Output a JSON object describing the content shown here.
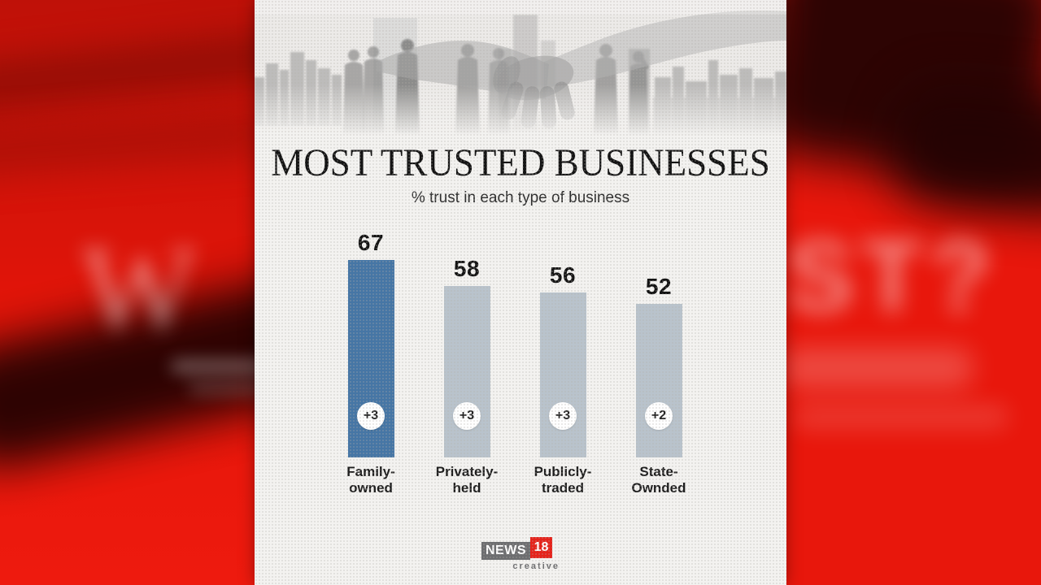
{
  "poster": {
    "title": "MOST TRUSTED BUSINESSES",
    "subtitle": "% trust in each type of business"
  },
  "chart_data": {
    "type": "bar",
    "title": "MOST TRUSTED BUSINESSES",
    "subtitle": "% trust in each type of business",
    "categories": [
      "Family-owned",
      "Privately-held",
      "Publicly-traded",
      "State-Ownded"
    ],
    "category_lines": [
      [
        "Family-",
        "owned"
      ],
      [
        "Privately-",
        "held"
      ],
      [
        "Publicly-",
        "traded"
      ],
      [
        "State-",
        "Ownded"
      ]
    ],
    "values": [
      67,
      58,
      56,
      52
    ],
    "change_badges": [
      "+3",
      "+3",
      "+3",
      "+2"
    ],
    "bar_colors": [
      "#4676a5",
      "#b9c3cc",
      "#b9c3cc",
      "#b9c3cc"
    ],
    "highlight_color": "#4676a5",
    "default_bar_color": "#b9c3cc",
    "ylim": [
      0,
      70
    ],
    "grid": false,
    "legend": "none"
  },
  "backdrop": {
    "left_white_letter": "W",
    "right_white_letters": "ST?",
    "red_color": "#e8170c",
    "dark_band_color": "#240303"
  },
  "logo": {
    "brand": "NEWS",
    "brand_number": "18",
    "sub_brand": "creative",
    "brand_box_color": "#6d6e70",
    "number_box_color": "#e5231b"
  }
}
